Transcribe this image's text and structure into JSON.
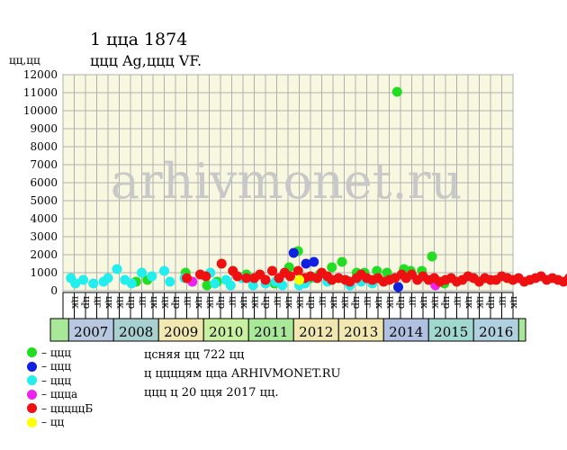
{
  "title": "1 ццa 1874",
  "subtitle": "ццц Ag,ццц VF.",
  "ylabel": "цц,цц",
  "watermark": "arhivmonet.ru",
  "legend": [
    {
      "label": "– ццц",
      "color": "#22dd22"
    },
    {
      "label": "– ццц",
      "color": "#1020e0"
    },
    {
      "label": "– ццц",
      "color": "#22eeee"
    },
    {
      "label": "– ццца",
      "color": "#ee22ee"
    },
    {
      "label": "– цццццБ",
      "color": "#ee1111"
    },
    {
      "label": "– цц",
      "color": "#ffff00"
    }
  ],
  "info": [
    "цcняя цц 722 цц",
    "ц ццццям цца ARHIVMONET.RU",
    "ццц ц 20 цця 2017 цц."
  ],
  "chart_data": {
    "type": "scatter",
    "title": "1 ццa 1874",
    "ylabel": "цц,цц",
    "ylim": [
      0,
      12000
    ],
    "yticks": [
      0,
      1000,
      2000,
      3000,
      4000,
      5000,
      6000,
      7000,
      8000,
      9000,
      10000,
      11000,
      12000
    ],
    "x_unit": "quarter index (0 = 2007 Q1)",
    "x_ticks": [
      "цк",
      "цр",
      "цг",
      "цк",
      "цк",
      "цр",
      "цг",
      "цк",
      "цк",
      "цр",
      "цг",
      "цк",
      "цк",
      "цр",
      "цг",
      "цк",
      "цк",
      "цр",
      "цг",
      "цк",
      "цк",
      "цр",
      "цг",
      "цк",
      "цк",
      "цр",
      "цг",
      "цк",
      "цк",
      "цр",
      "цг",
      "цк",
      "цк",
      "цр",
      "цг",
      "цк",
      "цк",
      "цр",
      "цг",
      "цк"
    ],
    "years": [
      {
        "label": "2007",
        "color": "#b8c8e0"
      },
      {
        "label": "2008",
        "color": "#a8d0d0"
      },
      {
        "label": "2009",
        "color": "#f0e8b0"
      },
      {
        "label": "2010",
        "color": "#c8f0a0"
      },
      {
        "label": "2011",
        "color": "#a8e898"
      },
      {
        "label": "2012",
        "color": "#f0e8b0"
      },
      {
        "label": "2013",
        "color": "#f0e8b0"
      },
      {
        "label": "2014",
        "color": "#b0c0e0"
      },
      {
        "label": "2015",
        "color": "#a0d8d0"
      },
      {
        "label": "2016",
        "color": "#b0d0e0"
      }
    ],
    "series": [
      {
        "color": "#22dd22",
        "points": [
          [
            6.0,
            500
          ],
          [
            7.0,
            600
          ],
          [
            10.4,
            1000
          ],
          [
            12.3,
            300
          ],
          [
            13.2,
            500
          ],
          [
            15.8,
            900
          ],
          [
            18.3,
            400
          ],
          [
            19.6,
            1300
          ],
          [
            20.4,
            2200
          ],
          [
            21.5,
            700
          ],
          [
            22.3,
            900
          ],
          [
            23.4,
            1300
          ],
          [
            24.3,
            1600
          ],
          [
            25.6,
            1000
          ],
          [
            26.3,
            1000
          ],
          [
            27.4,
            1100
          ],
          [
            28.3,
            1000
          ],
          [
            29.2,
            11050
          ],
          [
            29.8,
            1200
          ],
          [
            30.4,
            1100
          ],
          [
            31.4,
            1100
          ],
          [
            32.3,
            1900
          ],
          [
            33.4,
            400
          ]
        ]
      },
      {
        "color": "#1020e0",
        "points": [
          [
            20.0,
            2100
          ],
          [
            21.1,
            1500
          ],
          [
            21.8,
            1600
          ],
          [
            29.3,
            200
          ]
        ]
      },
      {
        "color": "#22eeee",
        "points": [
          [
            0.2,
            700
          ],
          [
            0.6,
            400
          ],
          [
            1.3,
            600
          ],
          [
            2.2,
            400
          ],
          [
            3.1,
            500
          ],
          [
            3.5,
            700
          ],
          [
            4.3,
            1200
          ],
          [
            5.0,
            600
          ],
          [
            5.6,
            400
          ],
          [
            6.5,
            1000
          ],
          [
            7.4,
            800
          ],
          [
            8.5,
            1100
          ],
          [
            9.0,
            500
          ],
          [
            10.3,
            700
          ],
          [
            12.6,
            1000
          ],
          [
            13.0,
            400
          ],
          [
            14.0,
            600
          ],
          [
            14.4,
            300
          ],
          [
            15.4,
            700
          ],
          [
            16.4,
            300
          ],
          [
            17.5,
            400
          ],
          [
            18.4,
            500
          ],
          [
            19.0,
            300
          ],
          [
            20.5,
            300
          ],
          [
            21.0,
            400
          ],
          [
            22.0,
            700
          ],
          [
            23.0,
            500
          ],
          [
            25.0,
            300
          ],
          [
            26.0,
            500
          ],
          [
            27.0,
            400
          ]
        ]
      },
      {
        "color": "#ee22ee",
        "points": [
          [
            11.0,
            500
          ],
          [
            32.6,
            300
          ]
        ]
      },
      {
        "color": "#ee1111",
        "points": [
          [
            10.5,
            700
          ],
          [
            11.7,
            900
          ],
          [
            12.2,
            800
          ],
          [
            13.6,
            1500
          ],
          [
            14.6,
            1100
          ],
          [
            15.0,
            800
          ],
          [
            15.8,
            700
          ],
          [
            16.5,
            700
          ],
          [
            17.0,
            900
          ],
          [
            17.5,
            600
          ],
          [
            18.1,
            1100
          ],
          [
            18.7,
            700
          ],
          [
            19.2,
            1000
          ],
          [
            19.7,
            800
          ],
          [
            20.4,
            1100
          ],
          [
            21.0,
            700
          ],
          [
            21.5,
            800
          ],
          [
            22.1,
            700
          ],
          [
            22.5,
            1000
          ],
          [
            23.0,
            800
          ],
          [
            23.4,
            600
          ],
          [
            24.0,
            700
          ],
          [
            24.6,
            600
          ],
          [
            25.0,
            500
          ],
          [
            25.6,
            700
          ],
          [
            26.0,
            900
          ],
          [
            26.5,
            700
          ],
          [
            27.0,
            600
          ],
          [
            27.5,
            700
          ],
          [
            28.0,
            500
          ],
          [
            28.5,
            600
          ],
          [
            29.0,
            700
          ],
          [
            29.6,
            900
          ],
          [
            30.0,
            700
          ],
          [
            30.5,
            900
          ],
          [
            31.0,
            600
          ],
          [
            31.5,
            800
          ],
          [
            32.0,
            600
          ],
          [
            32.5,
            700
          ],
          [
            33.0,
            500
          ],
          [
            33.5,
            600
          ],
          [
            34.0,
            700
          ],
          [
            34.5,
            500
          ],
          [
            35.0,
            600
          ],
          [
            35.5,
            800
          ],
          [
            36.0,
            700
          ],
          [
            36.5,
            500
          ],
          [
            37.0,
            700
          ],
          [
            37.5,
            600
          ],
          [
            38.0,
            600
          ],
          [
            38.5,
            800
          ],
          [
            39.0,
            700
          ],
          [
            39.5,
            600
          ],
          [
            40.0,
            700
          ],
          [
            40.5,
            500
          ],
          [
            41.0,
            600
          ],
          [
            41.5,
            700
          ],
          [
            42.0,
            800
          ],
          [
            42.5,
            600
          ],
          [
            43.0,
            700
          ],
          [
            43.5,
            600
          ],
          [
            44.0,
            500
          ],
          [
            44.5,
            700
          ],
          [
            45.0,
            800
          ],
          [
            45.5,
            600
          ],
          [
            46.0,
            600
          ],
          [
            46.5,
            700
          ],
          [
            47.0,
            1100
          ],
          [
            48.0,
            1000
          ],
          [
            48.5,
            900
          ],
          [
            49.0,
            700
          ],
          [
            49.5,
            600
          ],
          [
            50.0,
            500
          ],
          [
            50.5,
            700
          ],
          [
            51.0,
            600
          ],
          [
            51.5,
            500
          ],
          [
            52.0,
            500
          ],
          [
            52.5,
            700
          ],
          [
            53.0,
            600
          ]
        ]
      },
      {
        "color": "#ffff00",
        "points": [
          [
            20.5,
            600
          ]
        ]
      }
    ]
  }
}
